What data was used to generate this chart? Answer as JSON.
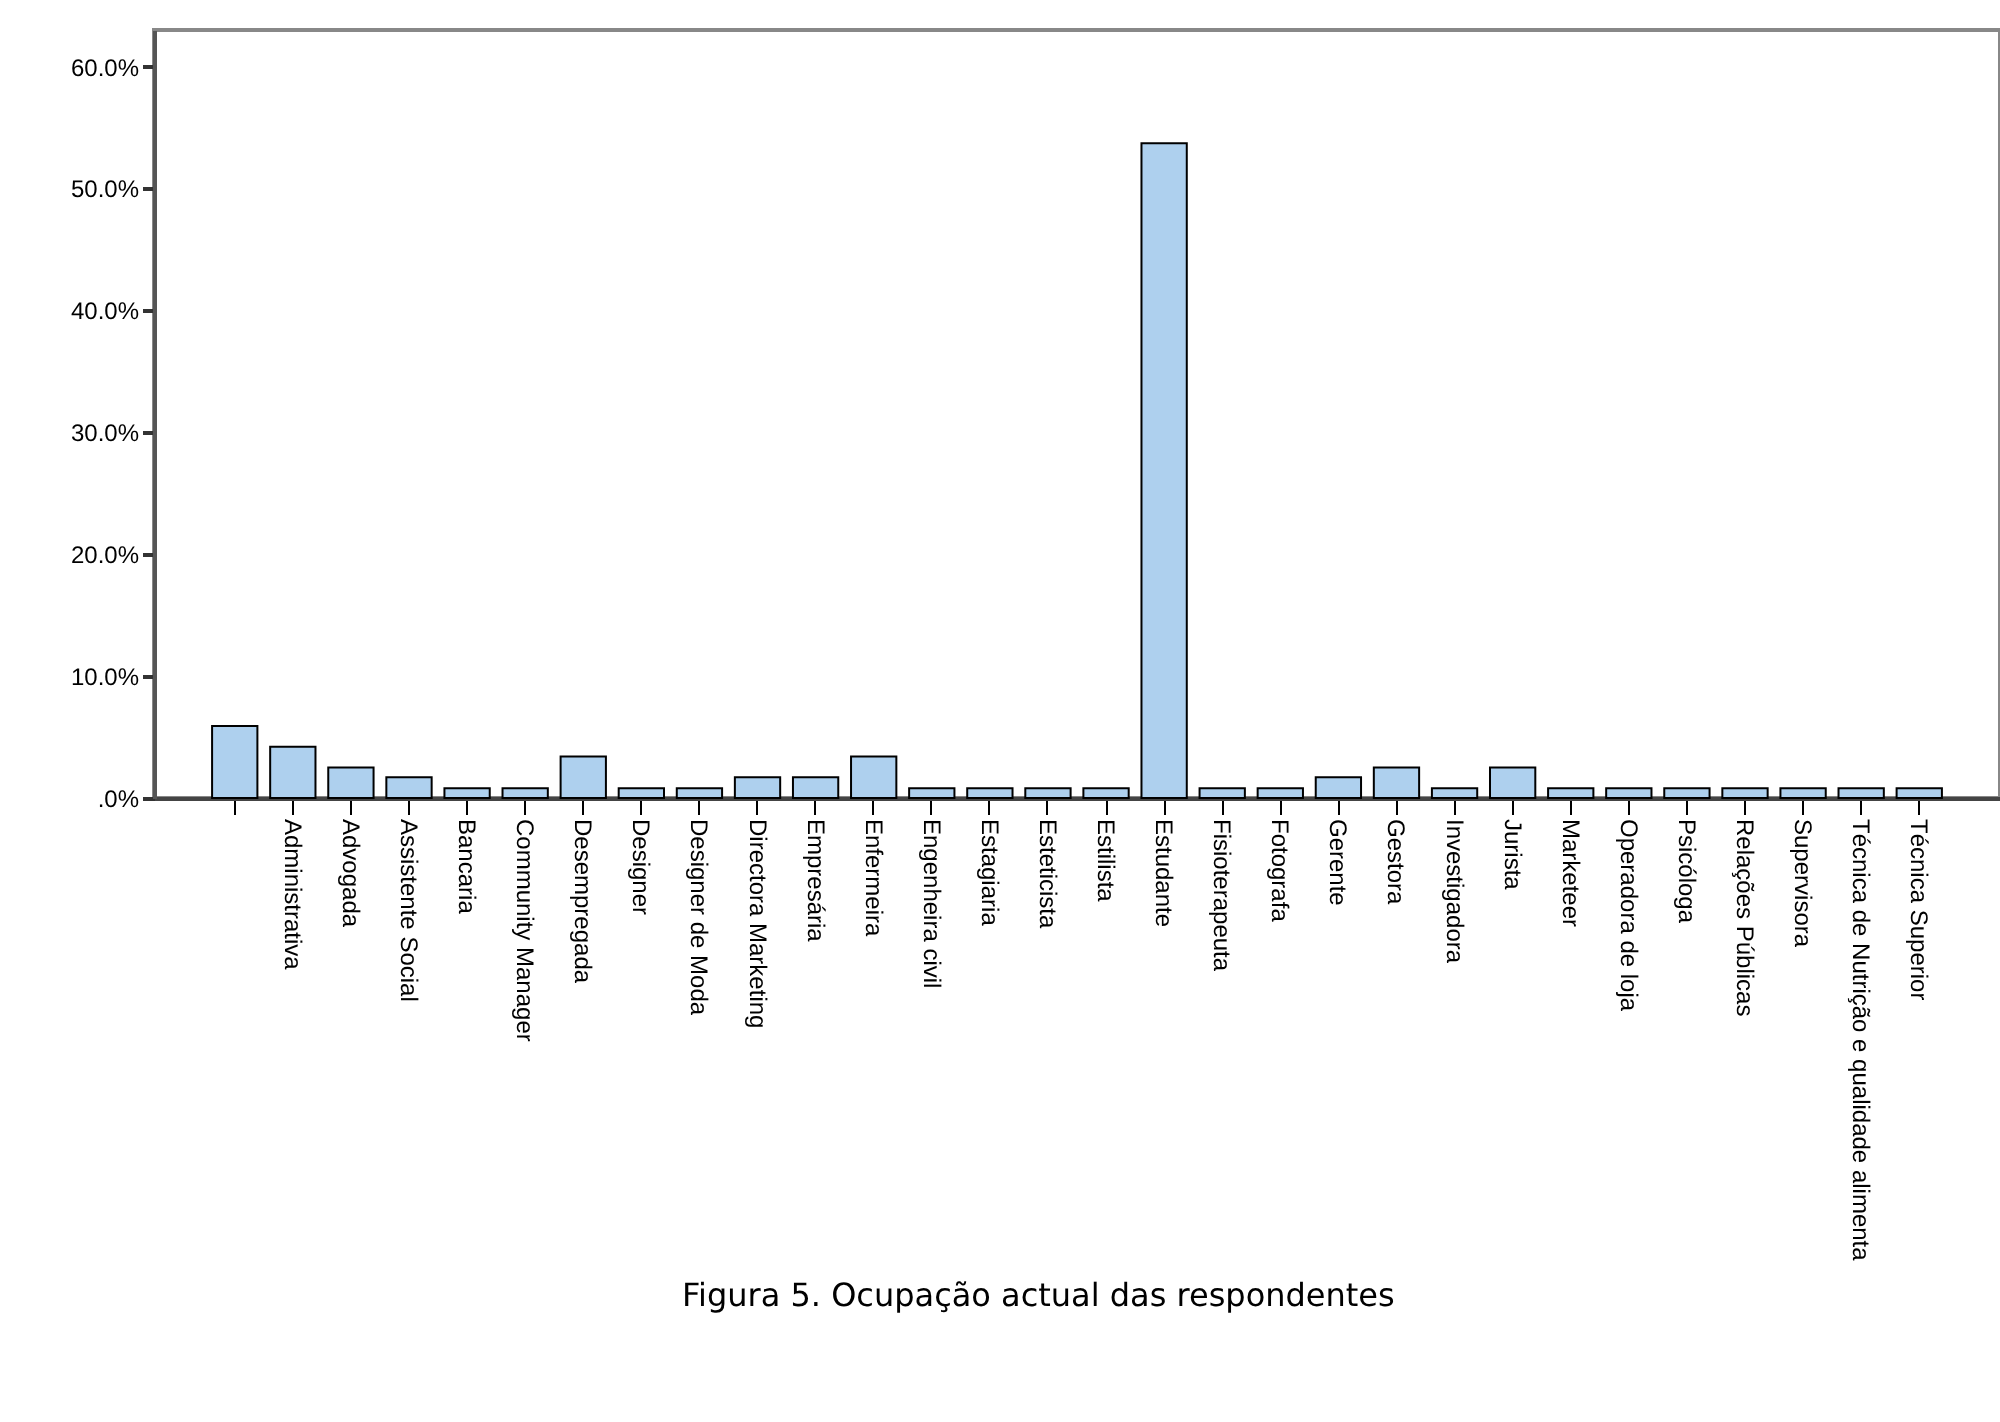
{
  "chart_data": {
    "type": "bar",
    "annotations": [
      "Figura 5. Ocupação actual das respondentes"
    ],
    "categories": [
      null,
      "Administrativa",
      "Advogada",
      "Assistente Social",
      "Bancaria",
      "Community Manager",
      "Desempregada",
      "Designer",
      "Designer de Moda",
      "Directora Marketing",
      "Empresária",
      "Enfermeira",
      "Engenheira civil",
      "Estagiaria",
      "Esteticista",
      "Estilista",
      "Estudante",
      "Fisioterapeuta",
      "Fotografa",
      "Gerente",
      "Gestora",
      "Investigadora",
      "Jurista",
      "Marketeer",
      "Operadora de loja",
      "Psicóloga",
      "Relações Públicas",
      "Supervisora",
      "Técnica de Nutrição e qualidade alimenta",
      "Técnica Superior"
    ],
    "values": [
      5.9,
      4.2,
      2.5,
      1.7,
      0.8,
      0.8,
      3.4,
      0.8,
      0.8,
      1.7,
      1.7,
      3.4,
      0.8,
      0.8,
      0.8,
      0.8,
      53.7,
      0.8,
      0.8,
      1.7,
      2.5,
      0.8,
      2.5,
      0.8,
      0.8,
      0.8,
      0.8,
      0.8,
      0.8,
      0.8
    ],
    "color": "#aed0ee",
    "ylim": [
      0,
      63
    ],
    "yticks": [
      {
        "value": 0,
        "label": ".0%"
      },
      {
        "value": 10,
        "label": "10.0%"
      },
      {
        "value": 20,
        "label": "20.0%"
      },
      {
        "value": 30,
        "label": "30.0%"
      },
      {
        "value": 40,
        "label": "40.0%"
      },
      {
        "value": 50,
        "label": "50.0%"
      },
      {
        "value": 60,
        "label": "60.0%"
      }
    ],
    "grid": false
  }
}
